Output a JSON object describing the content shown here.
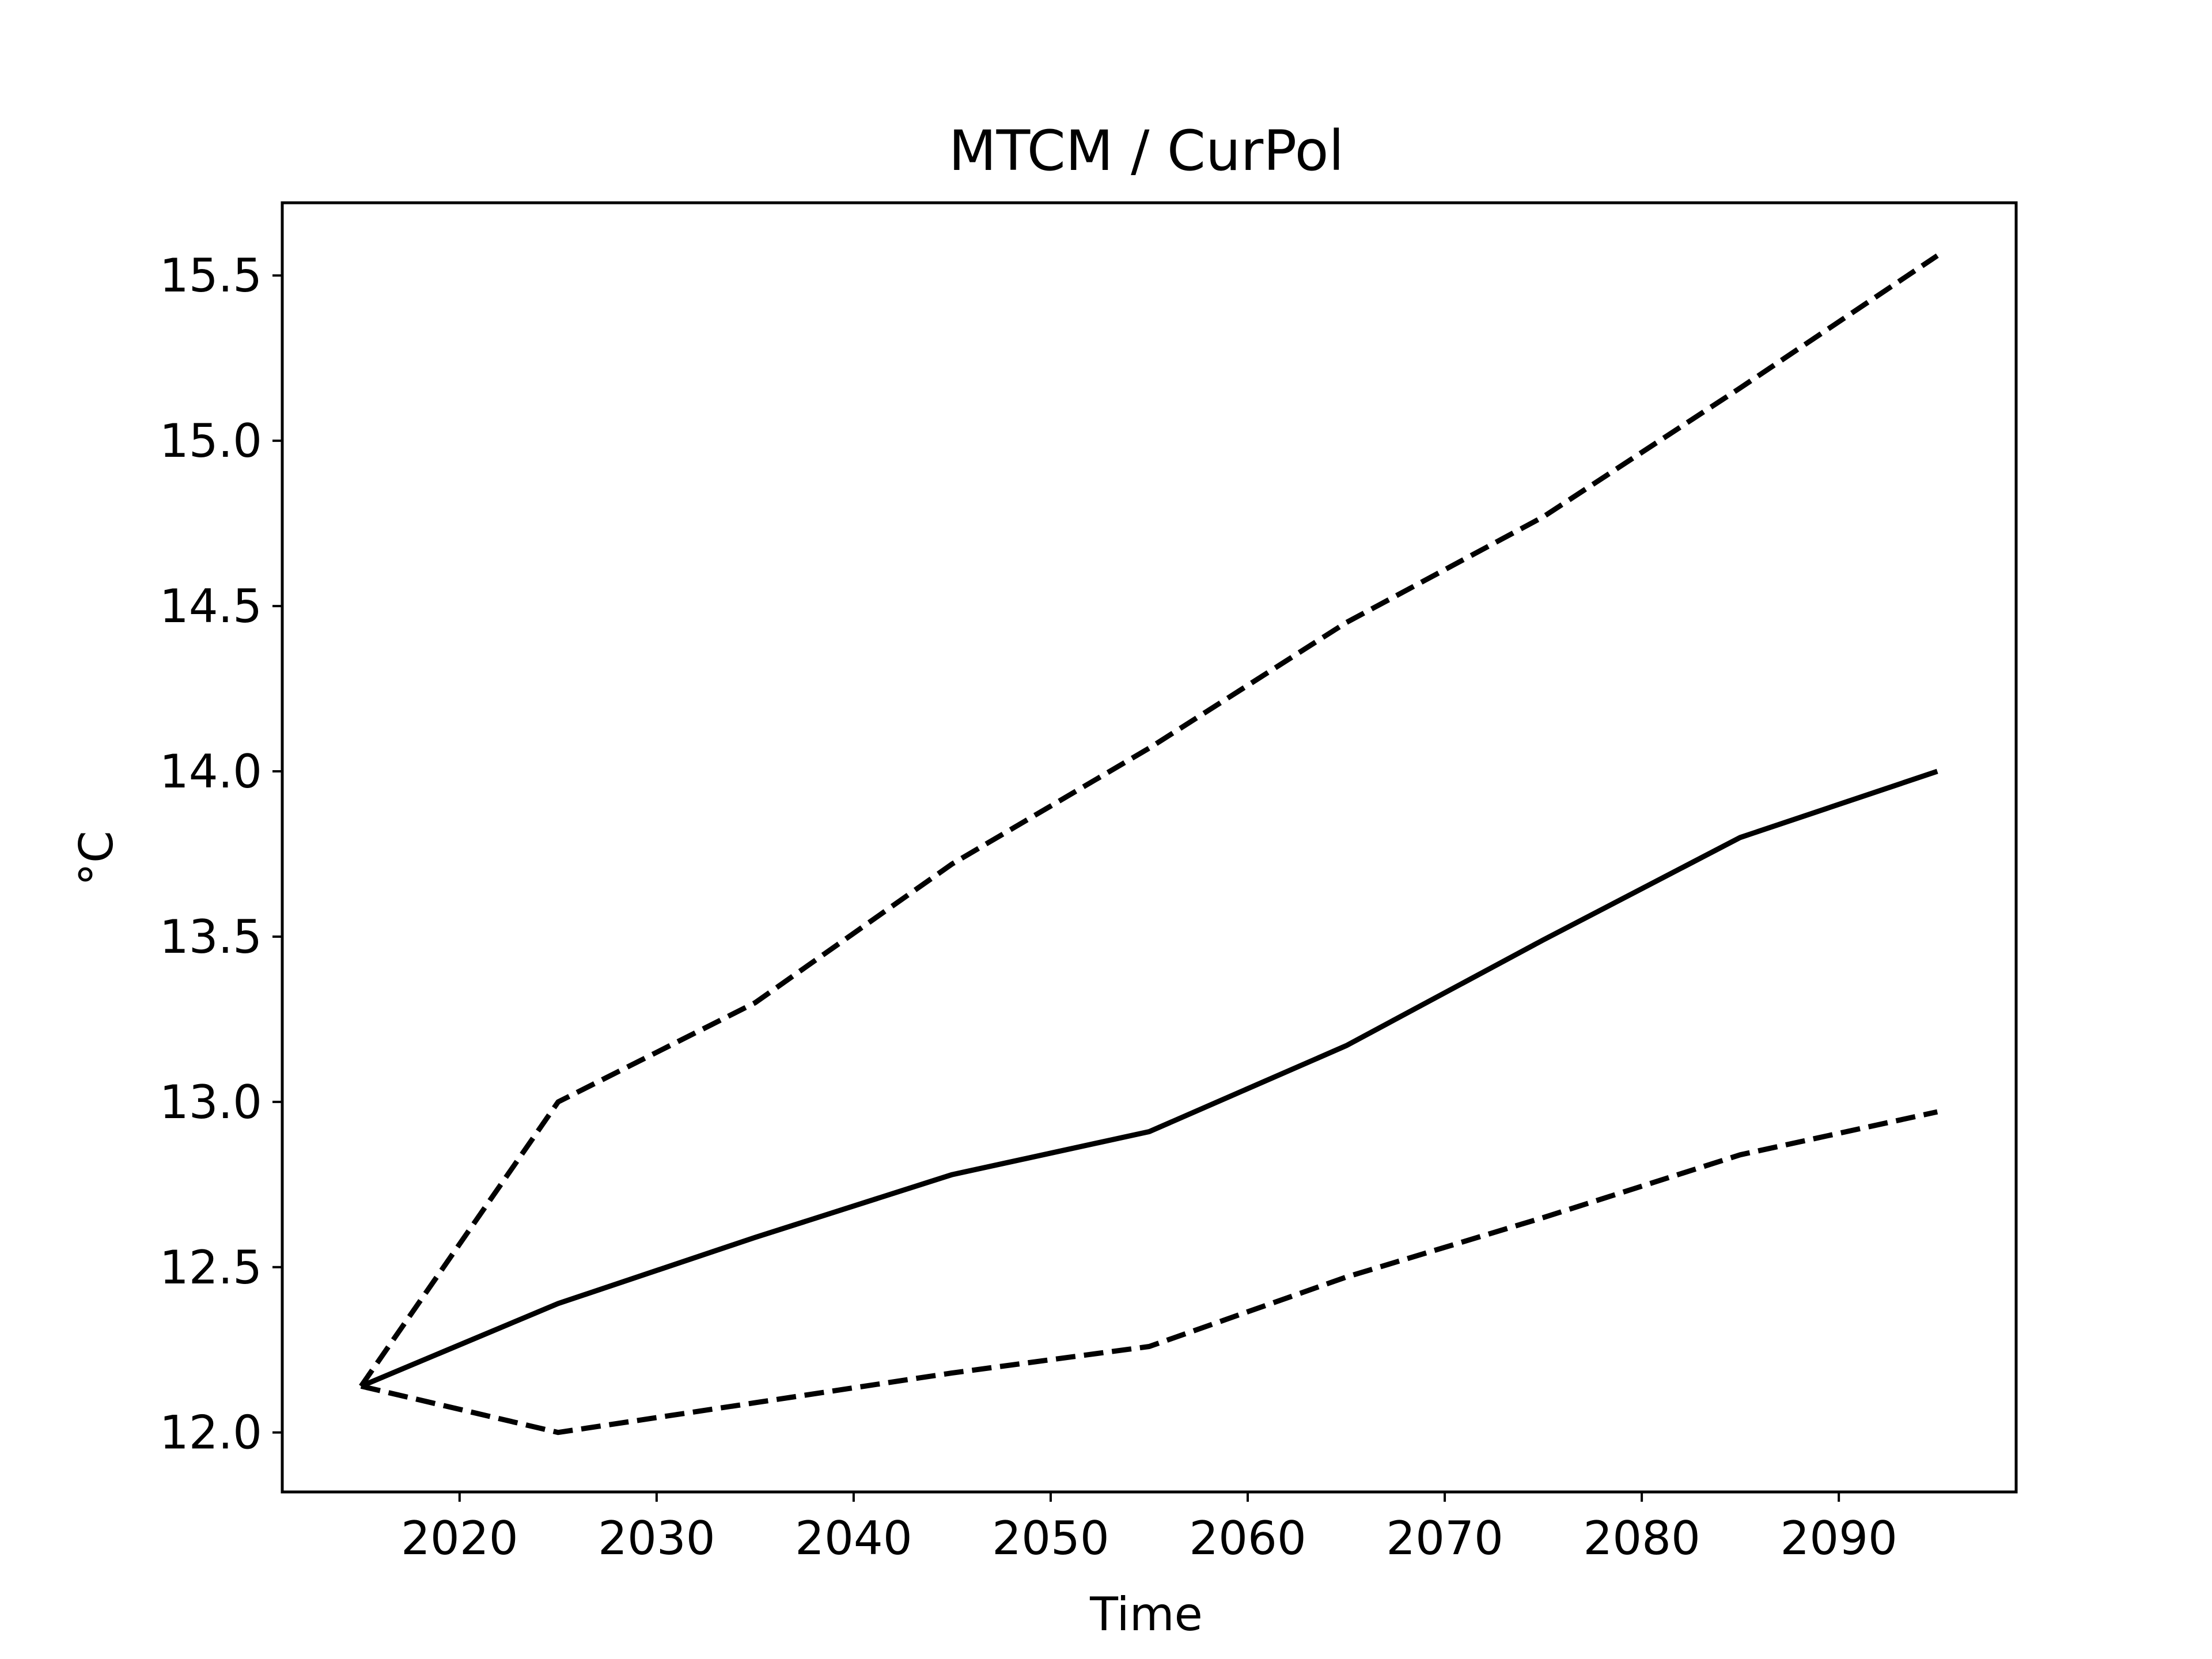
{
  "chart_data": {
    "type": "line",
    "title": "MTCM / CurPol",
    "xlabel": "Time",
    "ylabel": "°C",
    "xlim": [
      2011,
      2099
    ],
    "ylim": [
      11.82,
      15.72
    ],
    "xticks": [
      2020,
      2030,
      2040,
      2050,
      2060,
      2070,
      2080,
      2090
    ],
    "yticks": [
      12.0,
      12.5,
      13.0,
      13.5,
      14.0,
      14.5,
      15.0,
      15.5
    ],
    "x": [
      2015,
      2025,
      2035,
      2045,
      2055,
      2065,
      2075,
      2085,
      2095
    ],
    "series": [
      {
        "style": "solid",
        "color": "#000000",
        "values": [
          12.14,
          12.39,
          12.59,
          12.78,
          12.91,
          13.17,
          13.49,
          13.8,
          14.0
        ]
      },
      {
        "style": "dashed",
        "color": "#000000",
        "values": [
          12.14,
          13.0,
          13.3,
          13.72,
          14.07,
          14.45,
          14.77,
          15.16,
          15.56
        ]
      },
      {
        "style": "dashed",
        "color": "#000000",
        "values": [
          12.14,
          12.0,
          12.09,
          12.18,
          12.26,
          12.47,
          12.65,
          12.84,
          12.97
        ]
      }
    ],
    "grid": false,
    "legend": "none"
  }
}
